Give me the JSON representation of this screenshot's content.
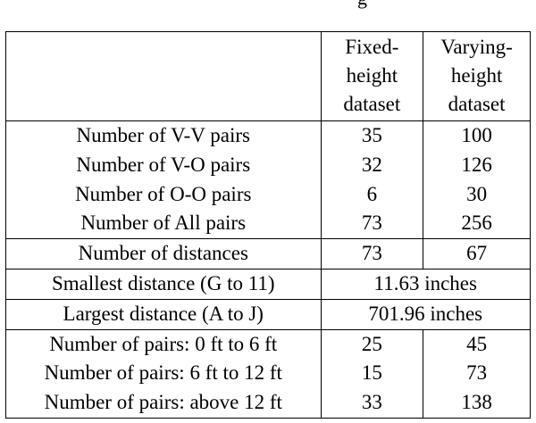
{
  "caption_fragment": "g",
  "table": {
    "header": {
      "col1": "",
      "col2": [
        "Fixed-",
        "height",
        "dataset"
      ],
      "col3": [
        "Varying-",
        "height",
        "dataset"
      ]
    },
    "pair_counts": [
      {
        "label": "Number of V-V pairs",
        "fixed": "35",
        "varying": "100"
      },
      {
        "label": "Number of V-O pairs",
        "fixed": "32",
        "varying": "126"
      },
      {
        "label": "Number of O-O pairs",
        "fixed": "6",
        "varying": "30"
      },
      {
        "label": "Number of All pairs",
        "fixed": "73",
        "varying": "256"
      }
    ],
    "distances": {
      "label": "Number of distances",
      "fixed": "73",
      "varying": "67"
    },
    "smallest": {
      "label": "Smallest distance (G to 11)",
      "value": "11.63 inches"
    },
    "largest": {
      "label": "Largest distance (A to J)",
      "value": "701.96 inches"
    },
    "ranges": [
      {
        "label": "Number of pairs: 0 ft to 6 ft",
        "fixed": "25",
        "varying": "45"
      },
      {
        "label": "Number of pairs: 6 ft to 12 ft",
        "fixed": "15",
        "varying": "73"
      },
      {
        "label": "Number of pairs: above 12 ft",
        "fixed": "33",
        "varying": "138"
      }
    ]
  }
}
